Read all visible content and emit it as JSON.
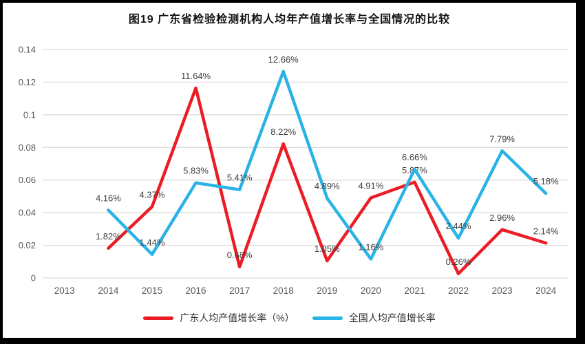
{
  "title": "图19  广东省检验检测机构人均年产值增长率与全国情况的比较",
  "chart_data": {
    "type": "line",
    "categories": [
      "2013",
      "2014",
      "2015",
      "2016",
      "2017",
      "2018",
      "2019",
      "2020",
      "2021",
      "2022",
      "2023",
      "2024"
    ],
    "series": [
      {
        "name": "广东人均产值增长率（%）",
        "color": "#ec1c24",
        "values": [
          null,
          0.0182,
          0.0437,
          0.1164,
          0.0068,
          0.0822,
          0.0105,
          0.0491,
          0.0587,
          0.0026,
          0.0296,
          0.0214
        ],
        "data_labels": [
          "",
          "1.82%",
          "4.37%",
          "11.64%",
          "0.68%",
          "8.22%",
          "1.05%",
          "4.91%",
          "5.87%",
          "0.26%",
          "2.96%",
          "2.14%"
        ]
      },
      {
        "name": "全国人均产值增长率",
        "color": "#29b3e6",
        "values": [
          null,
          0.0416,
          0.0144,
          0.0583,
          0.0541,
          0.1266,
          0.0489,
          0.0116,
          0.0666,
          0.0244,
          0.0779,
          0.0518
        ],
        "data_labels": [
          "",
          "4.16%",
          "1.44%",
          "5.83%",
          "5.41%",
          "12.66%",
          "4.89%",
          "1.16%",
          "6.66%",
          "2.44%",
          "7.79%",
          "5.18%"
        ]
      }
    ],
    "ylim": [
      0,
      0.14
    ],
    "yticks": [
      0,
      0.02,
      0.04,
      0.06,
      0.08,
      0.1,
      0.12,
      0.14
    ],
    "ytick_labels": [
      "0",
      "0.02",
      "0.04",
      "0.06",
      "0.08",
      "0.1",
      "0.12",
      "0.14"
    ],
    "grid": "horizontal",
    "legend_position": "bottom",
    "xlabel": "",
    "ylabel": ""
  },
  "colors": {
    "gridline": "#d9d9d9",
    "axis_text": "#595959",
    "data_label_text": "#3f3f3f",
    "frame": "#000000"
  }
}
